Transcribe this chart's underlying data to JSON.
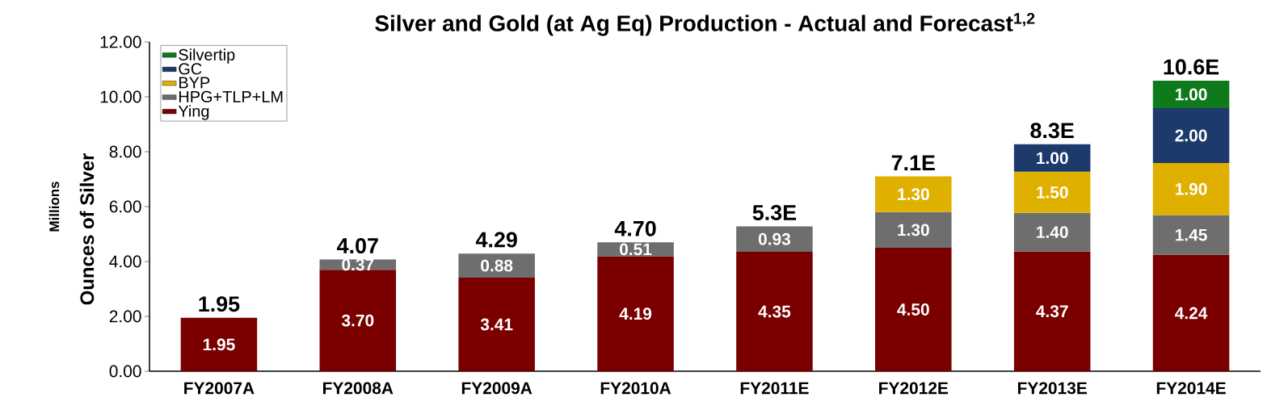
{
  "chart_data": {
    "type": "bar",
    "stacked": true,
    "title": "Silver and Gold (at Ag Eq) Production - Actual and Forecast$^{1,2}$",
    "ylabel": "Ounces of Silver",
    "annotations": [
      "Millions"
    ],
    "categories": [
      "FY2007A",
      "FY2008A",
      "FY2009A",
      "FY2010A",
      "FY2011E",
      "FY2012E",
      "FY2013E",
      "FY2014E"
    ],
    "series": [
      {
        "name": "Ying",
        "color": "#7a0000",
        "values": [
          1.95,
          3.7,
          3.41,
          4.19,
          4.35,
          4.5,
          4.37,
          4.24
        ],
        "value_labels": [
          "1.95",
          "3.70",
          "3.41",
          "4.19",
          "4.35",
          "4.50",
          "4.37",
          "4.24"
        ]
      },
      {
        "name": "HPG+TLP+LM",
        "color": "#6e6e6e",
        "values": [
          null,
          0.37,
          0.88,
          0.51,
          0.93,
          1.3,
          1.4,
          1.45
        ],
        "value_labels": [
          null,
          "0.37",
          "0.88",
          "0.51",
          "0.93",
          "1.30",
          "1.40",
          "1.45"
        ]
      },
      {
        "name": "BYP",
        "color": "#e0b000",
        "values": [
          null,
          null,
          null,
          null,
          null,
          1.3,
          1.5,
          1.9
        ],
        "value_labels": [
          null,
          null,
          null,
          null,
          null,
          "1.30",
          "1.50",
          "1.90"
        ]
      },
      {
        "name": "GC",
        "color": "#1c3a6b",
        "values": [
          null,
          null,
          null,
          null,
          null,
          null,
          1.0,
          2.0
        ],
        "value_labels": [
          null,
          null,
          null,
          null,
          null,
          null,
          "1.00",
          "2.00"
        ]
      },
      {
        "name": "Silvertip",
        "color": "#0e7a1c",
        "values": [
          null,
          null,
          null,
          null,
          null,
          null,
          null,
          1.0
        ],
        "value_labels": [
          null,
          null,
          null,
          null,
          null,
          null,
          null,
          "1.00"
        ]
      }
    ],
    "totals": [
      "1.95",
      "4.07",
      "4.29",
      "4.70",
      "5.3E",
      "7.1E",
      "8.3E",
      "10.6E"
    ],
    "ylim": [
      0,
      12
    ],
    "yticks": [
      {
        "value": 0,
        "label": "0.00"
      },
      {
        "value": 2,
        "label": "2.00"
      },
      {
        "value": 4,
        "label": "4.00"
      },
      {
        "value": 6,
        "label": "6.00"
      },
      {
        "value": 8,
        "label": "8.00"
      },
      {
        "value": 10,
        "label": "10.00"
      },
      {
        "value": 12,
        "label": "12.00"
      }
    ],
    "legend": "top left",
    "grid": false
  }
}
